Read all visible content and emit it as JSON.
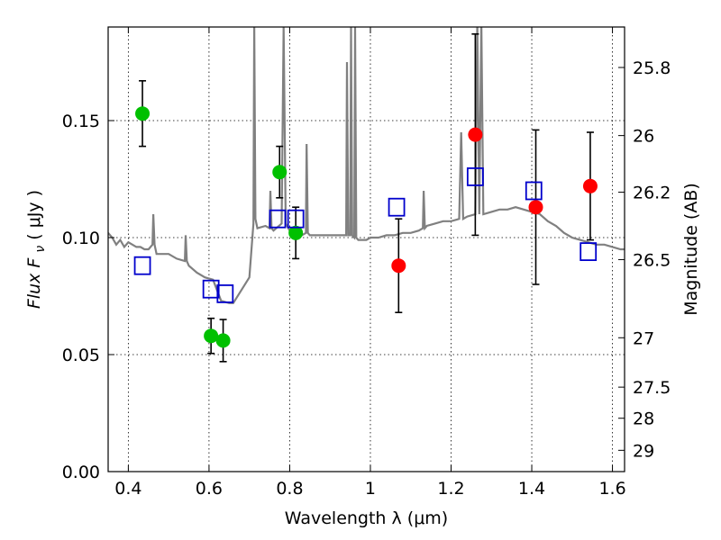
{
  "chart_data": {
    "type": "scatter",
    "xlabel": "Wavelength  λ (μm)",
    "ylabel": "Flux  F",
    "ylabel_subscript": "ν",
    "ylabel_unit": "( μJy )",
    "y2label": "Magnitude (AB)",
    "xlim": [
      0.35,
      1.63
    ],
    "ylim": [
      0.0,
      0.19
    ],
    "grid": true,
    "x_ticks": [
      0.4,
      0.6,
      0.8,
      1.0,
      1.2,
      1.4,
      1.6
    ],
    "x_tick_labels": [
      "0.4",
      "0.6",
      "0.8",
      "1",
      "1.2",
      "1.4",
      "1.6"
    ],
    "y_ticks": [
      0.0,
      0.05,
      0.1,
      0.15
    ],
    "y_tick_labels": [
      "0.00",
      "0.05",
      "0.10",
      "0.15"
    ],
    "y2_ticks": [
      {
        "label": "25.8",
        "flux": 0.1727
      },
      {
        "label": "26",
        "flux": 0.1436
      },
      {
        "label": "26.2",
        "flux": 0.1194
      },
      {
        "label": "26.5",
        "flux": 0.0906
      },
      {
        "label": "27",
        "flux": 0.0572
      },
      {
        "label": "27.5",
        "flux": 0.0361
      },
      {
        "label": "28",
        "flux": 0.0228
      },
      {
        "label": "29",
        "flux": 0.0091
      }
    ],
    "model_spectrum": {
      "color": "#808080",
      "x": [
        0.35,
        0.36,
        0.37,
        0.38,
        0.39,
        0.4,
        0.41,
        0.42,
        0.43,
        0.44,
        0.45,
        0.46,
        0.462,
        0.465,
        0.47,
        0.48,
        0.5,
        0.52,
        0.54,
        0.542,
        0.545,
        0.55,
        0.57,
        0.59,
        0.61,
        0.63,
        0.65,
        0.66,
        0.7,
        0.71,
        0.712,
        0.715,
        0.72,
        0.74,
        0.75,
        0.752,
        0.755,
        0.76,
        0.78,
        0.785,
        0.79,
        0.8,
        0.81,
        0.82,
        0.83,
        0.84,
        0.842,
        0.845,
        0.85,
        0.87,
        0.88,
        0.9,
        0.92,
        0.94,
        0.942,
        0.945,
        0.95,
        0.952,
        0.955,
        0.96,
        0.962,
        0.965,
        0.97,
        0.99,
        1.0,
        1.02,
        1.04,
        1.06,
        1.08,
        1.1,
        1.12,
        1.13,
        1.132,
        1.135,
        1.14,
        1.16,
        1.18,
        1.2,
        1.22,
        1.225,
        1.23,
        1.24,
        1.26,
        1.265,
        1.27,
        1.275,
        1.28,
        1.3,
        1.32,
        1.34,
        1.36,
        1.38,
        1.4,
        1.42,
        1.44,
        1.46,
        1.48,
        1.5,
        1.52,
        1.54,
        1.56,
        1.58,
        1.6,
        1.62,
        1.63
      ],
      "y": [
        0.102,
        0.1,
        0.097,
        0.099,
        0.096,
        0.098,
        0.097,
        0.096,
        0.096,
        0.095,
        0.095,
        0.097,
        0.11,
        0.097,
        0.093,
        0.093,
        0.093,
        0.091,
        0.09,
        0.101,
        0.09,
        0.088,
        0.085,
        0.083,
        0.082,
        0.073,
        0.072,
        0.072,
        0.083,
        0.106,
        0.192,
        0.108,
        0.104,
        0.105,
        0.104,
        0.12,
        0.104,
        0.103,
        0.106,
        0.19,
        0.106,
        0.103,
        0.101,
        0.1,
        0.101,
        0.102,
        0.14,
        0.102,
        0.101,
        0.101,
        0.101,
        0.101,
        0.101,
        0.101,
        0.175,
        0.101,
        0.101,
        0.19,
        0.101,
        0.1,
        0.19,
        0.1,
        0.099,
        0.099,
        0.1,
        0.1,
        0.101,
        0.101,
        0.102,
        0.102,
        0.103,
        0.104,
        0.12,
        0.104,
        0.105,
        0.106,
        0.107,
        0.107,
        0.108,
        0.145,
        0.108,
        0.109,
        0.11,
        0.192,
        0.11,
        0.192,
        0.11,
        0.111,
        0.112,
        0.112,
        0.113,
        0.112,
        0.111,
        0.11,
        0.107,
        0.105,
        0.102,
        0.1,
        0.099,
        0.098,
        0.097,
        0.097,
        0.096,
        0.095,
        0.095
      ]
    },
    "series": [
      {
        "marker": "circle",
        "color": "#00c000",
        "x": [
          0.435,
          0.605,
          0.635,
          0.775,
          0.815
        ],
        "y": [
          0.153,
          0.058,
          0.056,
          0.128,
          0.102
        ],
        "err": [
          0.014,
          0.0075,
          0.009,
          0.011,
          0.011
        ]
      },
      {
        "marker": "circle",
        "color": "#ff0000",
        "x": [
          1.07,
          1.26,
          1.41,
          1.545
        ],
        "y": [
          0.088,
          0.144,
          0.113,
          0.122
        ],
        "err": [
          0.02,
          0.043,
          0.033,
          0.023
        ]
      },
      {
        "marker": "open-square",
        "color": "#0000cc",
        "x": [
          0.435,
          0.605,
          0.64,
          0.77,
          0.815,
          1.065,
          1.26,
          1.405,
          1.54
        ],
        "y": [
          0.088,
          0.078,
          0.076,
          0.108,
          0.108,
          0.113,
          0.126,
          0.12,
          0.094
        ]
      }
    ]
  }
}
